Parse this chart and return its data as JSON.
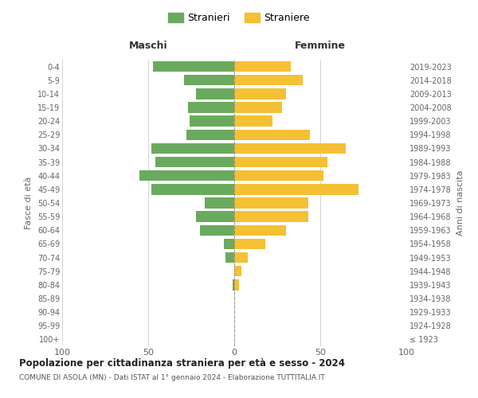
{
  "age_groups": [
    "100+",
    "95-99",
    "90-94",
    "85-89",
    "80-84",
    "75-79",
    "70-74",
    "65-69",
    "60-64",
    "55-59",
    "50-54",
    "45-49",
    "40-44",
    "35-39",
    "30-34",
    "25-29",
    "20-24",
    "15-19",
    "10-14",
    "5-9",
    "0-4"
  ],
  "birth_years": [
    "≤ 1923",
    "1924-1928",
    "1929-1933",
    "1934-1938",
    "1939-1943",
    "1944-1948",
    "1949-1953",
    "1954-1958",
    "1959-1963",
    "1964-1968",
    "1969-1973",
    "1974-1978",
    "1979-1983",
    "1984-1988",
    "1989-1993",
    "1994-1998",
    "1999-2003",
    "2004-2008",
    "2009-2013",
    "2014-2018",
    "2019-2023"
  ],
  "maschi": [
    0,
    0,
    0,
    0,
    1,
    0,
    5,
    6,
    20,
    22,
    17,
    48,
    55,
    46,
    48,
    28,
    26,
    27,
    22,
    29,
    47
  ],
  "femmine": [
    0,
    0,
    0,
    0,
    3,
    4,
    8,
    18,
    30,
    43,
    43,
    72,
    52,
    54,
    65,
    44,
    22,
    28,
    30,
    40,
    33
  ],
  "color_maschi": "#6aaa5e",
  "color_femmine": "#f5c033",
  "color_centerline": "#888888",
  "xlim": 100,
  "title": "Popolazione per cittadinanza straniera per età e sesso - 2024",
  "subtitle": "COMUNE DI ASOLA (MN) - Dati ISTAT al 1° gennaio 2024 - Elaborazione TUTTITALIA.IT",
  "ylabel_left": "Fasce di età",
  "ylabel_right": "Anni di nascita",
  "label_maschi": "Stranieri",
  "label_femmine": "Straniere",
  "header_maschi": "Maschi",
  "header_femmine": "Femmine",
  "bg_color": "#ffffff",
  "grid_color": "#cccccc"
}
